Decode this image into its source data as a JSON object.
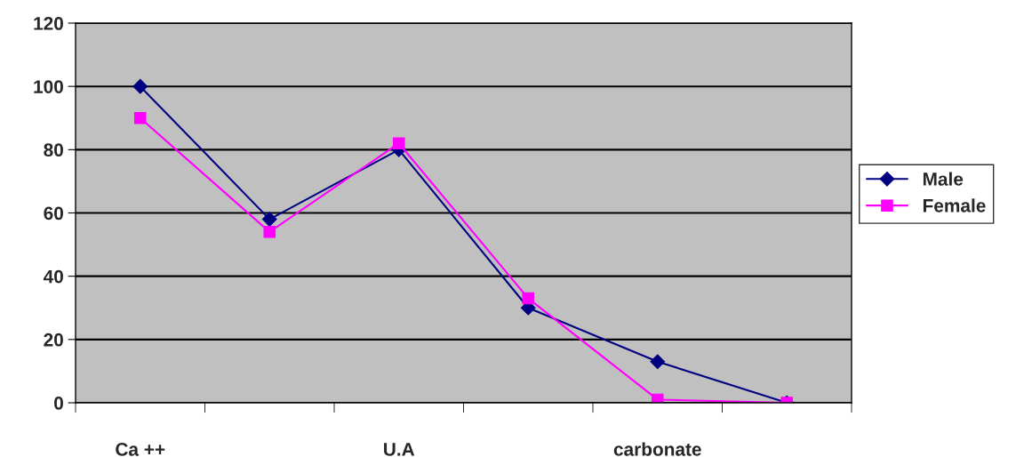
{
  "chart_data": {
    "type": "line",
    "categories": [
      "Ca ++",
      null,
      "U.A",
      null,
      "carbonate",
      null
    ],
    "series": [
      {
        "name": "Male",
        "color": "#000080",
        "marker": "diamond",
        "values": [
          100,
          58,
          80,
          30,
          13,
          0
        ]
      },
      {
        "name": "Female",
        "color": "#ff00ff",
        "marker": "square",
        "values": [
          90,
          54,
          82,
          33,
          1,
          0
        ]
      }
    ],
    "ylim": [
      0,
      120
    ],
    "yticks": [
      0,
      20,
      40,
      60,
      80,
      100,
      120
    ],
    "grid": "y",
    "legend": "right"
  }
}
